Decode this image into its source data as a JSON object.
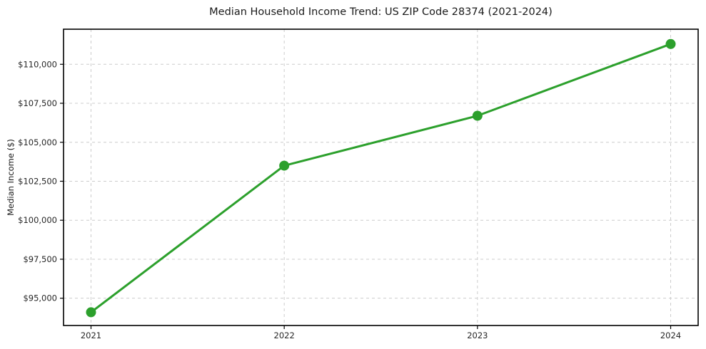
{
  "chart_data": {
    "type": "line",
    "title": "Median Household Income Trend: US ZIP Code 28374 (2021-2024)",
    "xlabel": "",
    "ylabel": "Median Income ($)",
    "x": [
      2021,
      2022,
      2023,
      2024
    ],
    "xtick_labels": [
      "2021",
      "2022",
      "2023",
      "2024"
    ],
    "series": [
      {
        "name": "Median Household Income",
        "values": [
          94100,
          103500,
          106700,
          111300
        ]
      }
    ],
    "yticks": [
      95000,
      97500,
      100000,
      102500,
      105000,
      107500,
      110000
    ],
    "ytick_labels": [
      "$95,000",
      "$97,500",
      "$100,000",
      "$102,500",
      "$105,000",
      "$107,500",
      "$110,000"
    ],
    "ylim": [
      93250,
      112250
    ],
    "grid": true,
    "legend_position": "none",
    "colors": {
      "line": "#2ca02c",
      "marker": "#2ca02c",
      "grid": "#cccccc",
      "spine": "#000000",
      "background": "#ffffff",
      "text": "#262626"
    },
    "marker_style": "circle",
    "line_width": 3,
    "marker_radius": 7
  }
}
